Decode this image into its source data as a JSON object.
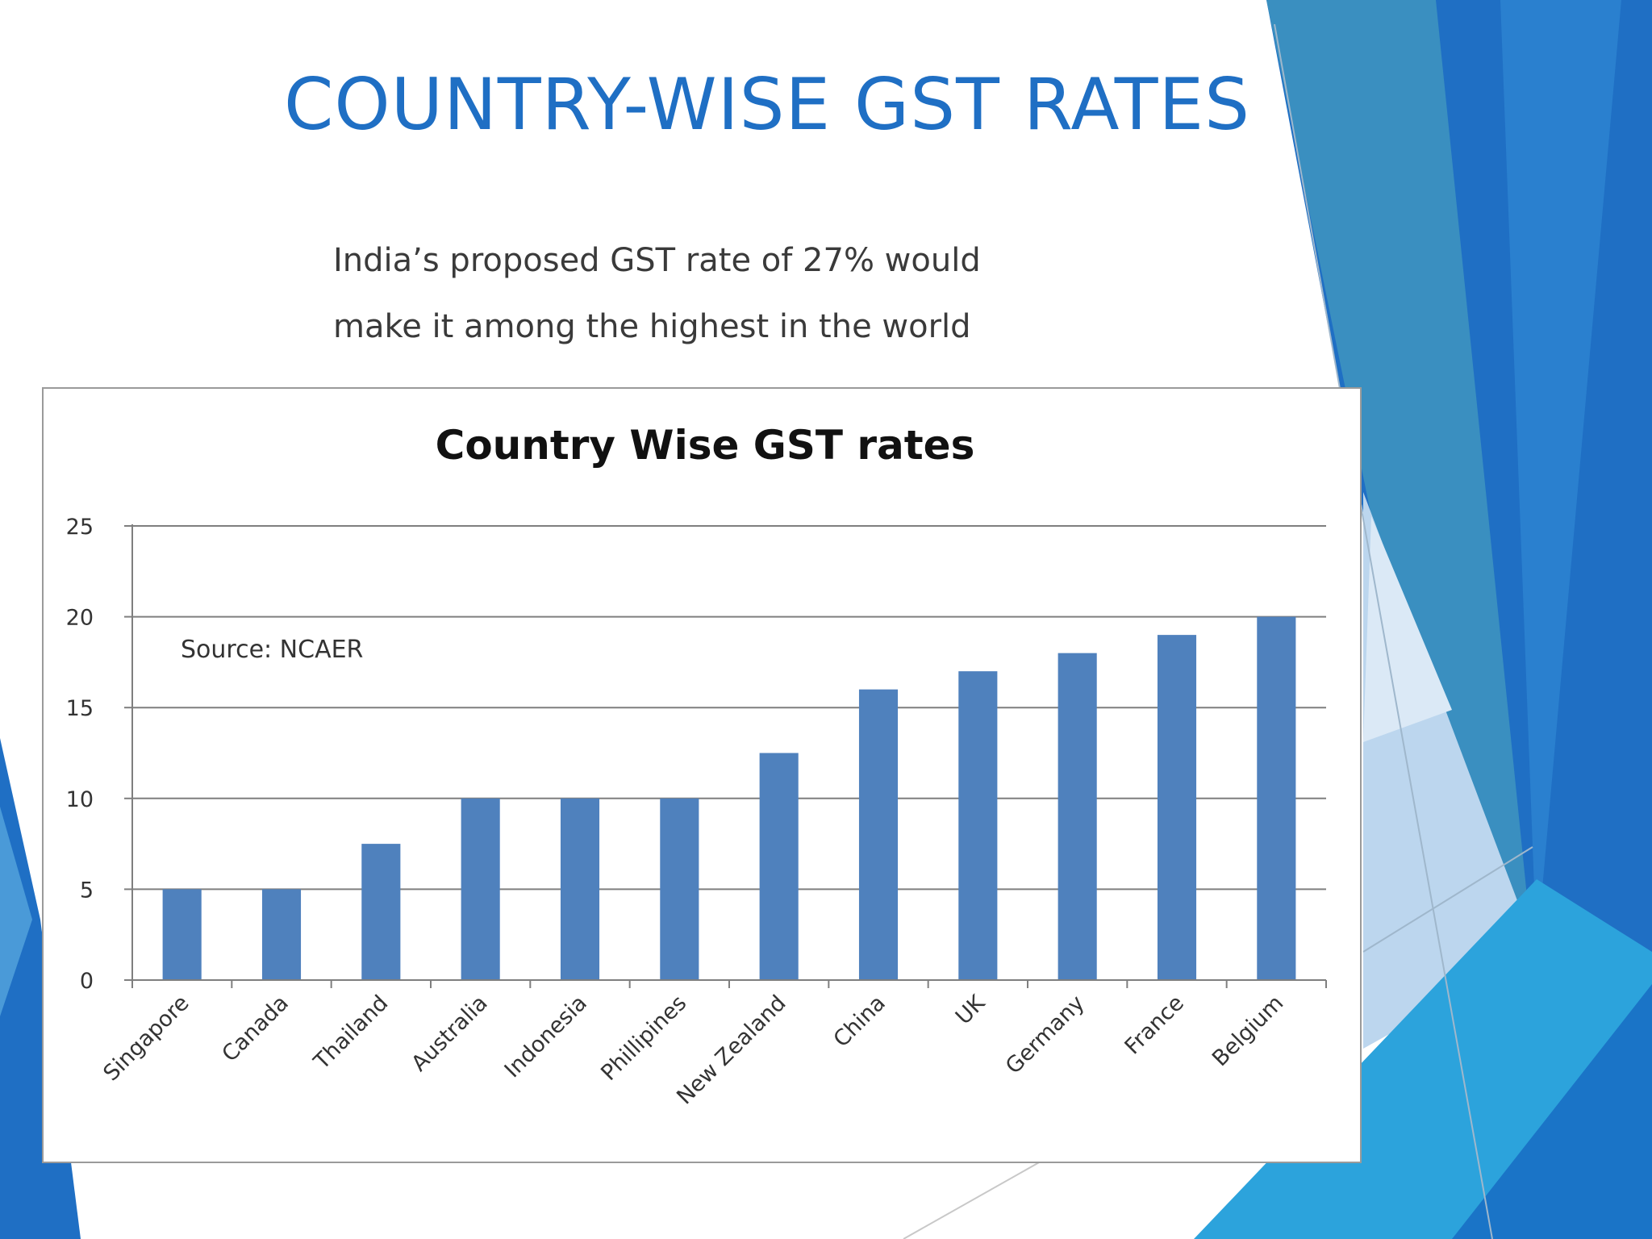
{
  "slide": {
    "title": "COUNTRY-WISE GST RATES",
    "body_lines": [
      "India’s proposed  GST rate of 27% would",
      "make it among the highest in the world"
    ]
  },
  "colors": {
    "title": "#1f6fc4",
    "bar": "#4f81bd",
    "decor_dark": "#1f6fc4",
    "decor_teal": "#3a8fc0",
    "decor_light": "#bcd6ee"
  },
  "chart_data": {
    "type": "bar",
    "title": "Country Wise GST rates",
    "annotation": "Source: NCAER",
    "xlabel": "",
    "ylabel": "",
    "ylim": [
      0,
      25
    ],
    "yticks": [
      0,
      5,
      10,
      15,
      20,
      25
    ],
    "grid": true,
    "categories": [
      "Singapore",
      "Canada",
      "Thailand",
      "Australia",
      "Indonesia",
      "Phillipines",
      "New Zealand",
      "China",
      "UK",
      "Germany",
      "France",
      "Belgium"
    ],
    "values": [
      5,
      5,
      7.5,
      10,
      10,
      10,
      12.5,
      16,
      17,
      18,
      19,
      20
    ]
  }
}
